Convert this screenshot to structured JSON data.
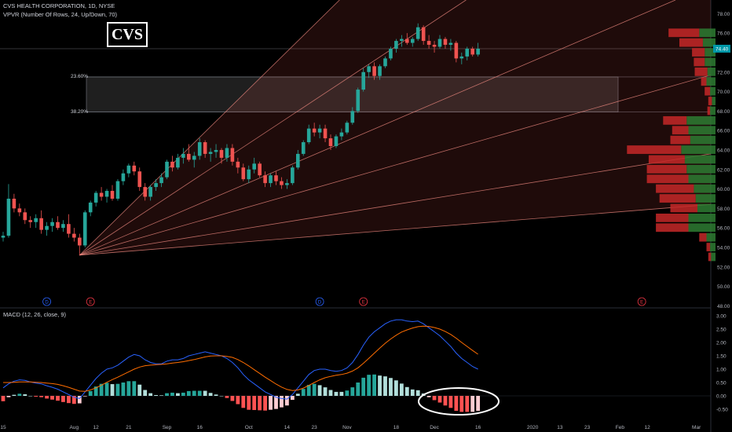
{
  "header": {
    "symbol_line": "CVS HEALTH CORPORATION, 1D, NYSE",
    "vpvr_line": "VPVR (Number Of Rows, 24, Up/Down, 70)",
    "macd_line": "MACD (12, 26, close, 9)"
  },
  "ticker_box": "CVS",
  "fib_levels": [
    {
      "label": "23.60%",
      "price": 71.5
    },
    {
      "label": "38.20%",
      "price": 67.9
    }
  ],
  "price_axis": {
    "ticks": [
      {
        "label": "78.00",
        "value": 78
      },
      {
        "label": "76.00",
        "value": 76
      },
      {
        "label": "72.00",
        "value": 72
      },
      {
        "label": "70.00",
        "value": 70
      },
      {
        "label": "68.00",
        "value": 68
      },
      {
        "label": "66.00",
        "value": 66
      },
      {
        "label": "64.00",
        "value": 64
      },
      {
        "label": "62.00",
        "value": 62
      },
      {
        "label": "60.00",
        "value": 60
      },
      {
        "label": "58.00",
        "value": 58
      },
      {
        "label": "56.00",
        "value": 56
      },
      {
        "label": "54.00",
        "value": 54
      },
      {
        "label": "52.00",
        "value": 52
      },
      {
        "label": "50.00",
        "value": 50
      },
      {
        "label": "48.00",
        "value": 48
      }
    ],
    "current_price_label": "74.40",
    "current_price": 74.4
  },
  "macd_axis": {
    "ticks": [
      {
        "label": "3.00",
        "value": 3
      },
      {
        "label": "2.50",
        "value": 2.5
      },
      {
        "label": "2.00",
        "value": 2
      },
      {
        "label": "1.50",
        "value": 1.5
      },
      {
        "label": "1.00",
        "value": 1
      },
      {
        "label": "0.50",
        "value": 0.5
      },
      {
        "label": "0.00",
        "value": 0
      },
      {
        "label": "-0.50",
        "value": -0.5
      }
    ]
  },
  "time_axis": {
    "ticks": [
      {
        "label": "15",
        "i": 0
      },
      {
        "label": "Aug",
        "i": 13
      },
      {
        "label": "12",
        "i": 17
      },
      {
        "label": "21",
        "i": 23
      },
      {
        "label": "Sep",
        "i": 30
      },
      {
        "label": "16",
        "i": 36
      },
      {
        "label": "Oct",
        "i": 45
      },
      {
        "label": "14",
        "i": 52
      },
      {
        "label": "23",
        "i": 57
      },
      {
        "label": "Nov",
        "i": 63
      },
      {
        "label": "18",
        "i": 72
      },
      {
        "label": "Dec",
        "i": 79
      },
      {
        "label": "16",
        "i": 87
      },
      {
        "label": "2020",
        "i": 97
      },
      {
        "label": "13",
        "i": 102
      },
      {
        "label": "23",
        "i": 107
      },
      {
        "label": "Feb",
        "i": 113
      },
      {
        "label": "12",
        "i": 118
      },
      {
        "label": "Mar",
        "i": 127
      }
    ]
  },
  "earnings_markers": [
    {
      "letter": "D",
      "i": 8,
      "color": "#2962ff"
    },
    {
      "letter": "E",
      "i": 16,
      "color": "#f23645"
    },
    {
      "letter": "D",
      "i": 58,
      "color": "#2962ff"
    },
    {
      "letter": "E",
      "i": 66,
      "color": "#f23645"
    },
    {
      "letter": "E",
      "i": 117,
      "color": "#f23645"
    }
  ],
  "colors": {
    "up": "#26a69a",
    "down": "#ef5350",
    "macd_line": "#2962ff",
    "signal_line": "#ff6d00",
    "fan_line": "#f28b82",
    "vp_up": "#2e7d32",
    "vp_down": "#c62828",
    "annotation": "#ffffff"
  },
  "chart_data": {
    "type": "candlestick",
    "title": "CVS HEALTH CORPORATION, 1D, NYSE",
    "ylim": [
      48,
      79
    ],
    "ohlc": [
      [
        55.0,
        55.6,
        54.6,
        55.2
      ],
      [
        55.2,
        60.5,
        55.0,
        59.0
      ],
      [
        59.0,
        59.5,
        57.6,
        58.0
      ],
      [
        58.0,
        58.5,
        57.2,
        57.6
      ],
      [
        57.6,
        58.0,
        56.4,
        56.8
      ],
      [
        56.8,
        57.2,
        56.0,
        56.6
      ],
      [
        56.6,
        57.4,
        56.0,
        57.0
      ],
      [
        57.0,
        57.8,
        55.4,
        55.8
      ],
      [
        55.8,
        56.6,
        55.2,
        56.2
      ],
      [
        56.2,
        57.0,
        55.6,
        56.6
      ],
      [
        56.6,
        57.2,
        55.8,
        56.0
      ],
      [
        56.0,
        56.8,
        55.6,
        56.4
      ],
      [
        56.4,
        57.4,
        55.0,
        55.4
      ],
      [
        55.4,
        56.0,
        54.6,
        55.0
      ],
      [
        55.0,
        55.4,
        53.2,
        54.2
      ],
      [
        54.2,
        57.8,
        54.0,
        57.6
      ],
      [
        57.6,
        58.8,
        57.2,
        58.6
      ],
      [
        58.6,
        59.8,
        58.2,
        59.6
      ],
      [
        59.6,
        60.2,
        58.8,
        59.2
      ],
      [
        59.2,
        60.0,
        58.6,
        59.8
      ],
      [
        59.8,
        60.4,
        58.8,
        59.0
      ],
      [
        59.0,
        61.0,
        58.8,
        60.8
      ],
      [
        60.8,
        62.0,
        60.4,
        61.6
      ],
      [
        61.6,
        62.6,
        61.2,
        62.4
      ],
      [
        62.4,
        62.8,
        61.4,
        61.8
      ],
      [
        61.8,
        62.2,
        59.8,
        60.2
      ],
      [
        60.2,
        60.6,
        58.8,
        59.2
      ],
      [
        59.2,
        60.4,
        58.8,
        60.2
      ],
      [
        60.2,
        61.0,
        59.8,
        60.6
      ],
      [
        60.6,
        61.6,
        60.2,
        61.2
      ],
      [
        61.2,
        63.0,
        61.0,
        62.8
      ],
      [
        62.8,
        63.4,
        61.8,
        62.2
      ],
      [
        62.2,
        63.6,
        62.0,
        63.2
      ],
      [
        63.2,
        64.2,
        62.6,
        63.6
      ],
      [
        63.6,
        64.6,
        62.8,
        63.0
      ],
      [
        63.0,
        63.8,
        62.2,
        63.4
      ],
      [
        63.4,
        65.2,
        63.0,
        64.8
      ],
      [
        64.8,
        65.0,
        63.2,
        63.6
      ],
      [
        63.6,
        64.2,
        62.8,
        63.8
      ],
      [
        63.8,
        64.6,
        63.2,
        64.0
      ],
      [
        64.0,
        64.2,
        62.6,
        63.2
      ],
      [
        63.2,
        64.6,
        62.8,
        64.2
      ],
      [
        64.2,
        64.6,
        62.4,
        62.8
      ],
      [
        62.8,
        63.2,
        61.6,
        62.2
      ],
      [
        62.2,
        62.6,
        60.8,
        61.0
      ],
      [
        61.0,
        62.4,
        60.6,
        62.0
      ],
      [
        62.0,
        63.2,
        61.6,
        62.6
      ],
      [
        62.6,
        62.8,
        61.2,
        61.4
      ],
      [
        61.4,
        61.8,
        60.2,
        60.6
      ],
      [
        60.6,
        61.6,
        60.2,
        61.4
      ],
      [
        61.4,
        61.8,
        60.4,
        60.8
      ],
      [
        60.8,
        61.2,
        60.0,
        60.4
      ],
      [
        60.4,
        61.0,
        60.0,
        60.6
      ],
      [
        60.6,
        62.4,
        60.4,
        62.2
      ],
      [
        62.2,
        64.0,
        62.0,
        63.6
      ],
      [
        63.6,
        65.0,
        63.4,
        64.8
      ],
      [
        64.8,
        66.6,
        64.6,
        66.2
      ],
      [
        66.2,
        66.8,
        65.4,
        65.8
      ],
      [
        65.8,
        66.6,
        65.2,
        66.2
      ],
      [
        66.2,
        66.6,
        64.8,
        65.2
      ],
      [
        65.2,
        65.6,
        64.0,
        64.4
      ],
      [
        64.4,
        65.6,
        64.2,
        65.4
      ],
      [
        65.4,
        66.2,
        65.0,
        65.8
      ],
      [
        65.8,
        67.0,
        65.6,
        66.8
      ],
      [
        66.8,
        68.4,
        66.6,
        68.0
      ],
      [
        68.0,
        70.4,
        67.8,
        70.2
      ],
      [
        70.2,
        72.4,
        70.0,
        72.0
      ],
      [
        72.0,
        72.8,
        71.4,
        72.6
      ],
      [
        72.6,
        73.0,
        71.2,
        71.6
      ],
      [
        71.6,
        72.8,
        71.2,
        72.6
      ],
      [
        72.6,
        73.6,
        72.4,
        73.4
      ],
      [
        73.4,
        74.6,
        73.2,
        74.4
      ],
      [
        74.4,
        75.4,
        74.0,
        75.2
      ],
      [
        75.2,
        75.8,
        74.6,
        75.4
      ],
      [
        75.4,
        76.0,
        74.8,
        75.0
      ],
      [
        75.0,
        75.6,
        74.6,
        75.4
      ],
      [
        75.4,
        77.0,
        75.2,
        76.6
      ],
      [
        76.6,
        76.8,
        74.8,
        75.2
      ],
      [
        75.2,
        75.8,
        74.4,
        74.8
      ],
      [
        74.8,
        75.2,
        74.0,
        74.6
      ],
      [
        74.6,
        75.8,
        74.4,
        75.4
      ],
      [
        75.4,
        75.6,
        74.4,
        74.8
      ],
      [
        74.8,
        75.4,
        74.2,
        75.0
      ],
      [
        75.0,
        75.2,
        73.0,
        73.4
      ],
      [
        73.4,
        74.0,
        72.8,
        73.6
      ],
      [
        73.6,
        74.6,
        73.2,
        74.4
      ],
      [
        74.4,
        74.6,
        73.6,
        73.8
      ],
      [
        73.8,
        75.0,
        73.6,
        74.4
      ]
    ],
    "macd": [
      0.3,
      0.45,
      0.55,
      0.6,
      0.58,
      0.52,
      0.48,
      0.45,
      0.38,
      0.32,
      0.25,
      0.15,
      0.05,
      -0.05,
      -0.1,
      0.15,
      0.4,
      0.65,
      0.85,
      1.0,
      1.05,
      1.15,
      1.3,
      1.45,
      1.55,
      1.5,
      1.35,
      1.25,
      1.2,
      1.2,
      1.3,
      1.35,
      1.35,
      1.4,
      1.5,
      1.55,
      1.6,
      1.65,
      1.6,
      1.55,
      1.5,
      1.4,
      1.25,
      1.05,
      0.8,
      0.6,
      0.45,
      0.3,
      0.15,
      0.05,
      -0.05,
      -0.1,
      -0.12,
      0.05,
      0.3,
      0.55,
      0.8,
      0.95,
      1.0,
      1.0,
      0.95,
      0.92,
      0.95,
      1.05,
      1.25,
      1.55,
      1.9,
      2.2,
      2.4,
      2.55,
      2.7,
      2.8,
      2.85,
      2.85,
      2.8,
      2.78,
      2.8,
      2.7,
      2.55,
      2.4,
      2.25,
      2.05,
      1.85,
      1.6,
      1.4,
      1.25,
      1.1,
      1.0
    ],
    "signal": [
      0.5,
      0.5,
      0.51,
      0.52,
      0.52,
      0.52,
      0.51,
      0.5,
      0.48,
      0.46,
      0.43,
      0.38,
      0.32,
      0.25,
      0.18,
      0.17,
      0.22,
      0.3,
      0.4,
      0.51,
      0.61,
      0.7,
      0.8,
      0.9,
      1.0,
      1.08,
      1.13,
      1.15,
      1.17,
      1.18,
      1.2,
      1.23,
      1.25,
      1.28,
      1.32,
      1.36,
      1.41,
      1.46,
      1.49,
      1.5,
      1.5,
      1.48,
      1.44,
      1.36,
      1.25,
      1.12,
      0.98,
      0.84,
      0.7,
      0.57,
      0.44,
      0.33,
      0.24,
      0.2,
      0.22,
      0.29,
      0.39,
      0.5,
      0.6,
      0.68,
      0.73,
      0.77,
      0.8,
      0.85,
      0.93,
      1.05,
      1.22,
      1.41,
      1.6,
      1.79,
      1.97,
      2.13,
      2.27,
      2.39,
      2.47,
      2.54,
      2.59,
      2.61,
      2.6,
      2.56,
      2.5,
      2.41,
      2.3,
      2.16,
      2.0,
      1.85,
      1.7,
      1.56
    ],
    "vpvr": [
      {
        "price": 76.0,
        "up": 1.8,
        "down": 3.4
      },
      {
        "price": 75.0,
        "up": 1.4,
        "down": 2.6
      },
      {
        "price": 74.0,
        "up": 1.2,
        "down": 1.4
      },
      {
        "price": 73.0,
        "up": 1.2,
        "down": 1.2
      },
      {
        "price": 72.0,
        "up": 0.9,
        "down": 1.4
      },
      {
        "price": 71.0,
        "up": 1.0,
        "down": 0.6
      },
      {
        "price": 70.0,
        "up": 0.6,
        "down": 0.6
      },
      {
        "price": 69.0,
        "up": 0.4,
        "down": 0.4
      },
      {
        "price": 68.0,
        "up": 0.6,
        "down": 0.3
      },
      {
        "price": 67.0,
        "up": 3.2,
        "down": 2.6
      },
      {
        "price": 66.0,
        "up": 3.0,
        "down": 1.8
      },
      {
        "price": 65.0,
        "up": 2.8,
        "down": 2.2
      },
      {
        "price": 64.0,
        "up": 3.8,
        "down": 6.0
      },
      {
        "price": 63.0,
        "up": 3.4,
        "down": 4.0
      },
      {
        "price": 62.0,
        "up": 3.2,
        "down": 4.4
      },
      {
        "price": 61.0,
        "up": 3.0,
        "down": 4.6
      },
      {
        "price": 60.0,
        "up": 2.4,
        "down": 4.2
      },
      {
        "price": 59.0,
        "up": 2.2,
        "down": 4.0
      },
      {
        "price": 58.0,
        "up": 2.0,
        "down": 3.0
      },
      {
        "price": 57.0,
        "up": 3.0,
        "down": 3.6
      },
      {
        "price": 56.0,
        "up": 3.0,
        "down": 3.6
      },
      {
        "price": 55.0,
        "up": 1.0,
        "down": 0.8
      },
      {
        "price": 54.0,
        "up": 0.6,
        "down": 0.4
      },
      {
        "price": 53.0,
        "up": 0.5,
        "down": 0.3
      }
    ],
    "gann_fan": {
      "origin_i": 14,
      "origin_price": 53.2,
      "slopes": [
        0.55,
        0.37,
        0.24,
        0.16,
        0.09,
        0.045
      ]
    }
  }
}
